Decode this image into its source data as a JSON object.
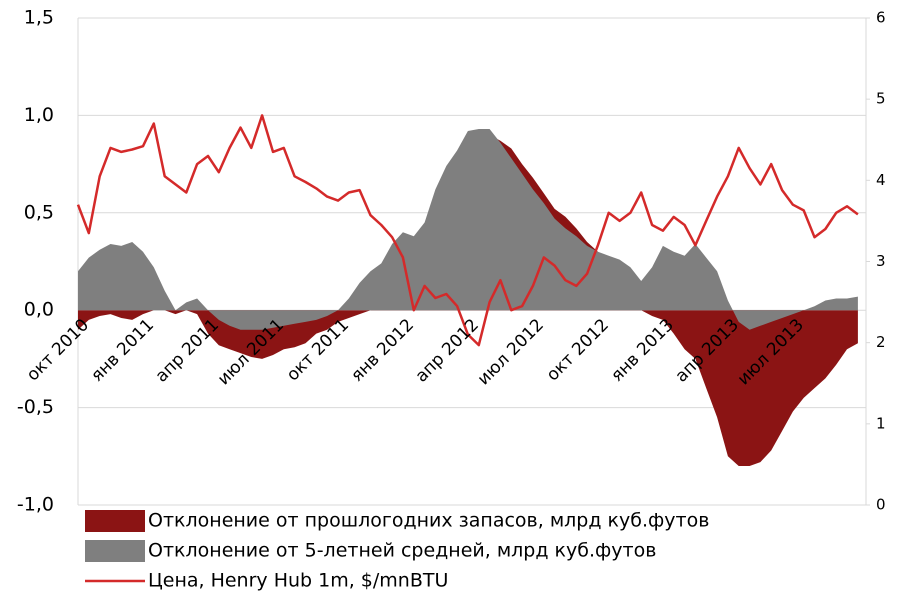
{
  "chart_data": {
    "type": "area",
    "categories": [
      "окт 2010",
      null,
      null,
      null,
      null,
      null,
      "янв 2011",
      null,
      null,
      null,
      null,
      null,
      "апр 2011",
      null,
      null,
      null,
      null,
      null,
      "июл 2011",
      null,
      null,
      null,
      null,
      null,
      "окт 2011",
      null,
      null,
      null,
      null,
      null,
      "янв 2012",
      null,
      null,
      null,
      null,
      null,
      "апр 2012",
      null,
      null,
      null,
      null,
      null,
      "июл 2012",
      null,
      null,
      null,
      null,
      null,
      "окт 2012",
      null,
      null,
      null,
      null,
      null,
      "янв 2013",
      null,
      null,
      null,
      null,
      null,
      "апр 2013",
      null,
      null,
      null,
      null,
      null,
      "июл 2013",
      null,
      null,
      null,
      null,
      null,
      null
    ],
    "series": [
      {
        "name": "Отклонение от прошлогодних запасов, млрд куб.футов",
        "type": "area",
        "color": "#8b1414",
        "values": [
          -0.1,
          -0.05,
          -0.03,
          -0.02,
          -0.04,
          -0.05,
          -0.02,
          0.0,
          0.0,
          -0.02,
          0.0,
          -0.02,
          -0.12,
          -0.18,
          -0.2,
          -0.22,
          -0.24,
          -0.25,
          -0.23,
          -0.2,
          -0.19,
          -0.17,
          -0.12,
          -0.1,
          -0.06,
          -0.04,
          -0.02,
          0.0,
          0.1,
          0.2,
          0.3,
          0.3,
          0.4,
          0.55,
          0.7,
          0.8,
          0.9,
          0.92,
          0.9,
          0.87,
          0.83,
          0.75,
          0.68,
          0.6,
          0.52,
          0.48,
          0.42,
          0.35,
          0.3,
          0.25,
          0.2,
          0.1,
          0.0,
          -0.03,
          -0.05,
          -0.12,
          -0.2,
          -0.25,
          -0.4,
          -0.55,
          -0.75,
          -0.8,
          -0.8,
          -0.78,
          -0.72,
          -0.62,
          -0.52,
          -0.45,
          -0.4,
          -0.35,
          -0.28,
          -0.2,
          -0.17
        ]
      },
      {
        "name": "Отклонение от 5-летней средней, млрд куб.футов",
        "type": "area",
        "color": "#7f7f7f",
        "values": [
          0.2,
          0.27,
          0.31,
          0.34,
          0.33,
          0.35,
          0.3,
          0.22,
          0.1,
          0.0,
          0.04,
          0.06,
          0.0,
          -0.05,
          -0.08,
          -0.1,
          -0.1,
          -0.1,
          -0.09,
          -0.08,
          -0.07,
          -0.06,
          -0.05,
          -0.03,
          0.0,
          0.06,
          0.14,
          0.2,
          0.24,
          0.34,
          0.4,
          0.38,
          0.45,
          0.62,
          0.74,
          0.82,
          0.92,
          0.93,
          0.93,
          0.86,
          0.78,
          0.7,
          0.62,
          0.55,
          0.47,
          0.42,
          0.38,
          0.33,
          0.3,
          0.28,
          0.26,
          0.22,
          0.15,
          0.22,
          0.33,
          0.3,
          0.28,
          0.34,
          0.27,
          0.2,
          0.05,
          -0.06,
          -0.1,
          -0.08,
          -0.06,
          -0.04,
          -0.02,
          0.0,
          0.02,
          0.05,
          0.06,
          0.06,
          0.07
        ]
      },
      {
        "name": "Цена, Henry Hub 1m, $/mnBTU",
        "type": "line",
        "axis": "y2",
        "color": "#d42a2a",
        "values": [
          3.7,
          3.35,
          4.05,
          4.4,
          4.35,
          4.38,
          4.42,
          4.7,
          4.05,
          3.95,
          3.85,
          4.2,
          4.3,
          4.1,
          4.4,
          4.65,
          4.4,
          4.8,
          4.35,
          4.4,
          4.05,
          3.98,
          3.9,
          3.8,
          3.75,
          3.85,
          3.88,
          3.57,
          3.45,
          3.3,
          3.05,
          2.4,
          2.7,
          2.55,
          2.6,
          2.45,
          2.1,
          1.97,
          2.5,
          2.77,
          2.4,
          2.45,
          2.7,
          3.05,
          2.95,
          2.77,
          2.7,
          2.85,
          3.2,
          3.6,
          3.5,
          3.6,
          3.85,
          3.45,
          3.38,
          3.55,
          3.45,
          3.2,
          3.5,
          3.8,
          4.05,
          4.4,
          4.15,
          3.95,
          4.2,
          3.88,
          3.7,
          3.63,
          3.3,
          3.4,
          3.6,
          3.68,
          3.58
        ]
      }
    ],
    "ylim": [
      -1,
      1.5
    ],
    "yticks": [
      {
        "value": -1,
        "label": "-1,0"
      },
      {
        "value": -0.5,
        "label": "-0,5"
      },
      {
        "value": 0,
        "label": "0,0"
      },
      {
        "value": 0.5,
        "label": "0,5"
      },
      {
        "value": 1,
        "label": "1,0"
      },
      {
        "value": 1.5,
        "label": "1,5"
      }
    ],
    "y2lim": [
      0,
      6
    ],
    "y2ticks": [
      0,
      1,
      2,
      3,
      4,
      5,
      6
    ],
    "grid": true,
    "legend": "bottom"
  }
}
